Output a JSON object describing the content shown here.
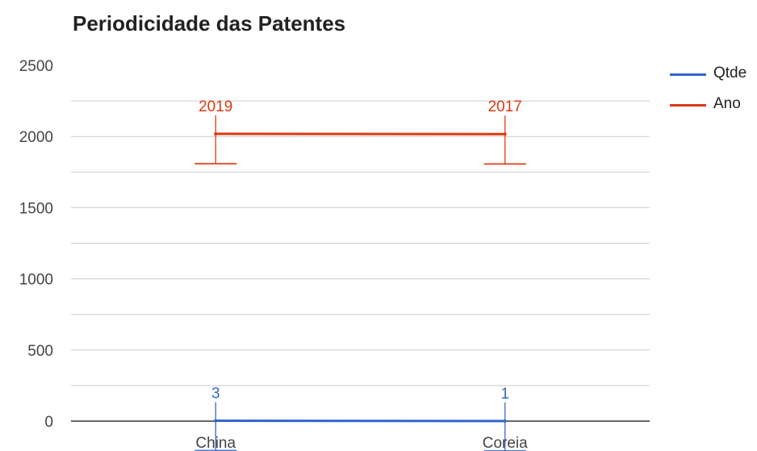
{
  "chart_data": {
    "type": "line",
    "title": "Periodicidade das Patentes",
    "categories": [
      "China",
      "Coreia"
    ],
    "series": [
      {
        "name": "Qtde",
        "values": [
          3,
          1
        ],
        "labels": [
          "3",
          "1"
        ],
        "color": "#3366cc"
      },
      {
        "name": "Ano",
        "values": [
          2019,
          2017
        ],
        "labels": [
          "2019",
          "2017"
        ],
        "color": "#dc3912"
      }
    ],
    "y_ticks": [
      "0",
      "500",
      "1000",
      "1500",
      "2000",
      "2500"
    ],
    "ylim": [
      0,
      2500
    ],
    "xlabel": "",
    "ylabel": "",
    "grid": true,
    "legend_position": "right"
  }
}
